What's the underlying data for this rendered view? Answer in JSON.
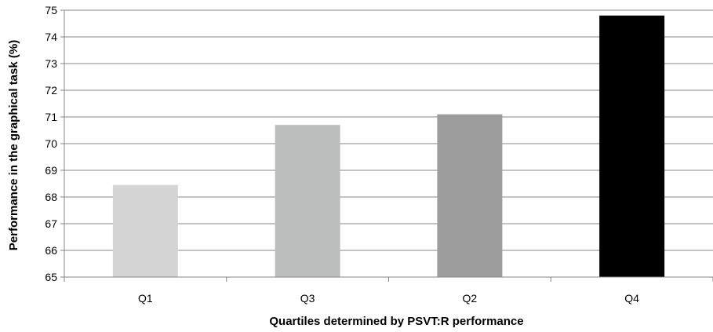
{
  "chart_data": {
    "type": "bar",
    "title": "",
    "xlabel": "Quartiles determined by PSVT:R performance",
    "ylabel": "Performance in the graphical task (%)",
    "categories": [
      "Q1",
      "Q3",
      "Q2",
      "Q4"
    ],
    "values": [
      68.45,
      70.7,
      71.1,
      74.8
    ],
    "bar_colors": [
      "#d3d4d3",
      "#bcbdbd",
      "#9d9d9d",
      "#000000"
    ],
    "ylim": [
      65,
      75
    ],
    "yticks": [
      "65",
      "66",
      "67",
      "68",
      "69",
      "70",
      "71",
      "72",
      "73",
      "74",
      "75"
    ],
    "grid": true,
    "legend": "none"
  }
}
